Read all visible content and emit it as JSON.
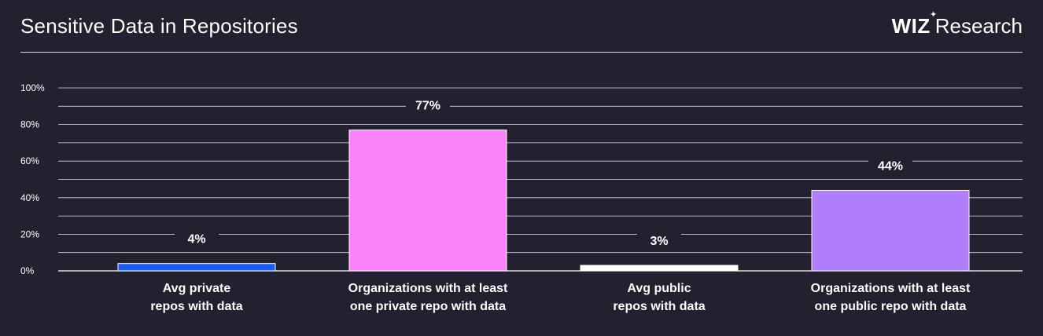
{
  "header": {
    "title": "Sensitive Data in Repositories",
    "logo_brand": "WIZ",
    "logo_suffix": "Research"
  },
  "colors": {
    "background": "#23202f",
    "gridline": "#ffffff",
    "text": "#ffffff"
  },
  "chart_data": {
    "type": "bar",
    "title": "Sensitive Data in Repositories",
    "xlabel": "",
    "ylabel": "",
    "ylim": [
      0,
      100
    ],
    "yticks": [
      "0%",
      "20%",
      "40%",
      "60%",
      "80%",
      "100%"
    ],
    "grid": true,
    "categories": [
      [
        "Avg private",
        "repos with data"
      ],
      [
        "Organizations with at least",
        "one private repo with data"
      ],
      [
        "Avg public",
        "repos with data"
      ],
      [
        "Organizations with at least",
        "one public repo with data"
      ]
    ],
    "values": [
      4,
      77,
      3,
      44
    ],
    "data_labels": [
      "4%",
      "77%",
      "3%",
      "44%"
    ],
    "bar_colors": [
      "#1a5cf0",
      "#fb83fb",
      "#ffffff",
      "#b07efb"
    ]
  }
}
